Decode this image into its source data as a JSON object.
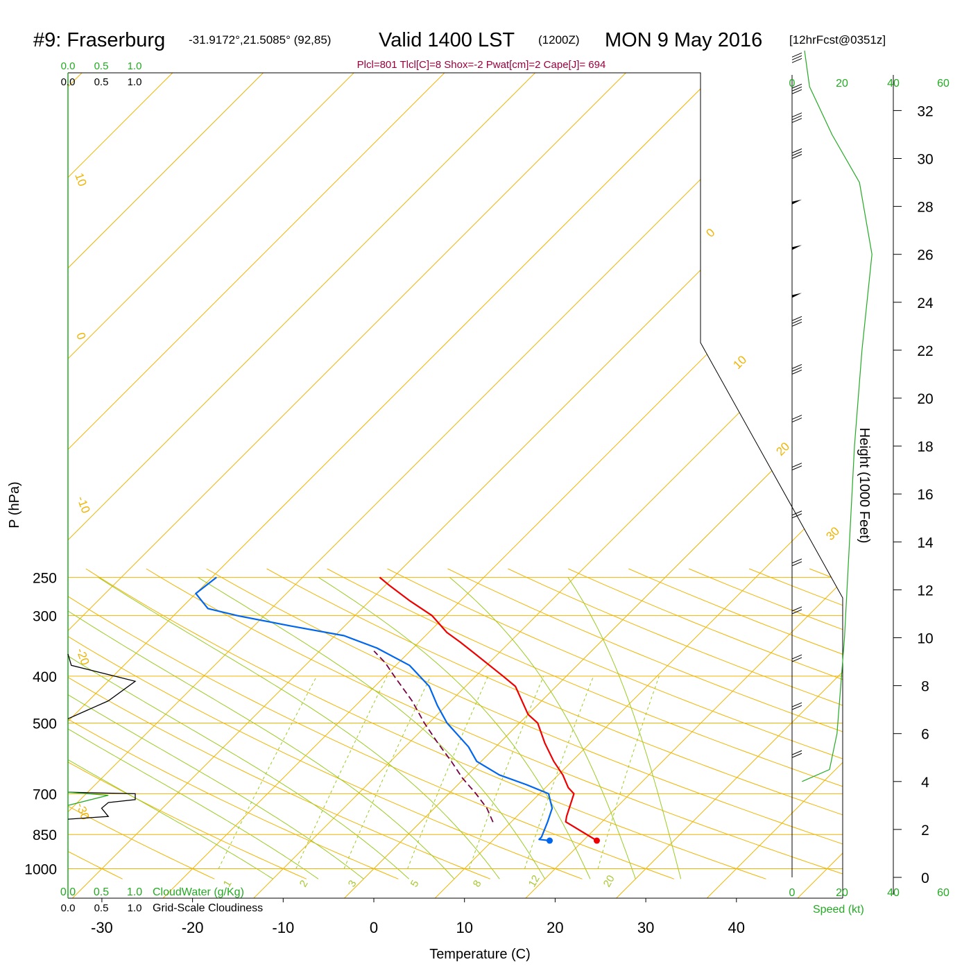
{
  "title": {
    "station": "#9: Fraserburg",
    "coords": "-31.9172°,21.5085° (92,85)",
    "valid": "Valid 1400 LST",
    "utc": "(1200Z)",
    "date": "MON 9 May 2016",
    "forecast": "[12hrFcst@0351z]"
  },
  "params_line": "Plcl=801 Tlcl[C]=8 Shox=-2 Pwat[cm]=2 Cape[J]= 694",
  "axes": {
    "xlabel": "Temperature (C)",
    "ylabel": "P (hPa)",
    "height_label": "Height (1000 Feet)",
    "speed_label": "Speed (kt)",
    "cloudwater_label": "CloudWater (g/Kg)",
    "cloudiness_label": "Grid-Scale Cloudiness"
  },
  "colors": {
    "temperature": "#ee0000",
    "dewpoint": "#0066ee",
    "parcel": "#770044",
    "isotherm": "#f0b400",
    "dry_adiabat": "#f0b400",
    "moist_adiabat": "#99cc22",
    "mixing_ratio": "#99cc22",
    "cloudwater": "#22aa22",
    "cloudiness": "#000000",
    "wind_speed": "#22aa22"
  },
  "chart_data": {
    "type": "line",
    "title": "#9: Fraserburg -31.9172°,21.5085° (92,85) Valid 1400 LST (1200Z) MON 9 May 2016 [12hrFcst@0351z]",
    "subtitle": "Plcl=801 Tlcl[C]=8 Shox=-2 Pwat[cm]=2 Cape[J]= 694",
    "xlabel": "Temperature (C)",
    "ylabel": "P (hPa)",
    "xlim": [
      -34,
      46
    ],
    "ylim": [
      1000,
      250
    ],
    "y_scale": "log",
    "skew": "skew-T log-P",
    "grid": true,
    "pressure_ticks": [
      "250",
      "300",
      "400",
      "500",
      "700",
      "850",
      "1000"
    ],
    "temperature_ticks": [
      "-30",
      "-20",
      "-10",
      "0",
      "10",
      "20",
      "30",
      "40"
    ],
    "isotherm_labels": [
      "10",
      "0",
      "-10",
      "-20",
      "-30",
      "0",
      "10",
      "20",
      "30"
    ],
    "mixing_ratio_labels": [
      "1",
      "2",
      "3",
      "5",
      "8",
      "12",
      "20"
    ],
    "height_ticks": [
      "0",
      "2",
      "4",
      "6",
      "8",
      "10",
      "12",
      "14",
      "16",
      "18",
      "20",
      "22",
      "24",
      "26",
      "28",
      "30",
      "32"
    ],
    "speed_ticks": [
      "0",
      "20",
      "40",
      "60"
    ],
    "cloud_ticks": [
      "0.0",
      "0.5",
      "1.0"
    ],
    "series": [
      {
        "name": "Temperature",
        "points": [
          {
            "p": 875,
            "t": 21.5
          },
          {
            "p": 800,
            "t": 16.0
          },
          {
            "p": 780,
            "t": 15.5
          },
          {
            "p": 700,
            "t": 13.8
          },
          {
            "p": 680,
            "t": 12.5
          },
          {
            "p": 640,
            "t": 10.5
          },
          {
            "p": 600,
            "t": 8.0
          },
          {
            "p": 550,
            "t": 5.0
          },
          {
            "p": 500,
            "t": 2.0
          },
          {
            "p": 480,
            "t": 0.0
          },
          {
            "p": 420,
            "t": -4.5
          },
          {
            "p": 400,
            "t": -7.0
          },
          {
            "p": 360,
            "t": -12.5
          },
          {
            "p": 340,
            "t": -15.5
          },
          {
            "p": 325,
            "t": -18.0
          },
          {
            "p": 300,
            "t": -21.5
          },
          {
            "p": 280,
            "t": -25.5
          },
          {
            "p": 260,
            "t": -29.5
          },
          {
            "p": 250,
            "t": -31.5
          }
        ]
      },
      {
        "name": "Dewpoint",
        "points": [
          {
            "p": 875,
            "t": 16.3
          },
          {
            "p": 870,
            "t": 15.0
          },
          {
            "p": 860,
            "t": 15.0
          },
          {
            "p": 800,
            "t": 14.0
          },
          {
            "p": 750,
            "t": 13.0
          },
          {
            "p": 700,
            "t": 11.0
          },
          {
            "p": 670,
            "t": 7.5
          },
          {
            "p": 640,
            "t": 3.5
          },
          {
            "p": 600,
            "t": -0.5
          },
          {
            "p": 560,
            "t": -3.0
          },
          {
            "p": 500,
            "t": -8.0
          },
          {
            "p": 460,
            "t": -11.0
          },
          {
            "p": 420,
            "t": -14.0
          },
          {
            "p": 380,
            "t": -18.5
          },
          {
            "p": 350,
            "t": -24.0
          },
          {
            "p": 330,
            "t": -29.0
          },
          {
            "p": 315,
            "t": -36.0
          },
          {
            "p": 300,
            "t": -43.0
          },
          {
            "p": 290,
            "t": -47.0
          },
          {
            "p": 270,
            "t": -50.0
          },
          {
            "p": 250,
            "t": -49.5
          }
        ]
      },
      {
        "name": "Parcel",
        "points": [
          {
            "p": 801,
            "t": 8.0
          },
          {
            "p": 750,
            "t": 5.8
          },
          {
            "p": 700,
            "t": 3.0
          },
          {
            "p": 650,
            "t": -0.2
          },
          {
            "p": 600,
            "t": -3.3
          },
          {
            "p": 550,
            "t": -6.8
          },
          {
            "p": 500,
            "t": -10.5
          },
          {
            "p": 450,
            "t": -14.3
          },
          {
            "p": 400,
            "t": -19.0
          },
          {
            "p": 375,
            "t": -21.5
          },
          {
            "p": 355,
            "t": -24.0
          }
        ]
      }
    ],
    "surface_markers": [
      {
        "name": "Temperature",
        "p": 875,
        "t": 21.5
      },
      {
        "name": "Dewpoint",
        "p": 875,
        "t": 16.3
      }
    ],
    "cloudiness": [
      {
        "p": 695,
        "v": 0.0
      },
      {
        "p": 700,
        "v": 1.0
      },
      {
        "p": 720,
        "v": 1.0
      },
      {
        "p": 730,
        "v": 0.6
      },
      {
        "p": 750,
        "v": 0.5
      },
      {
        "p": 780,
        "v": 0.6
      },
      {
        "p": 790,
        "v": 0.0
      },
      {
        "p": 360,
        "v": 0.0
      },
      {
        "p": 380,
        "v": 0.05
      },
      {
        "p": 410,
        "v": 1.0
      },
      {
        "p": 450,
        "v": 0.6
      },
      {
        "p": 490,
        "v": 0.0
      }
    ],
    "cloudwater": [
      {
        "p": 695,
        "v": 0.0
      },
      {
        "p": 705,
        "v": 0.6
      },
      {
        "p": 740,
        "v": 0.0
      }
    ],
    "wind_speed_profile": [
      {
        "h": 4.0,
        "s": 4
      },
      {
        "h": 4.5,
        "s": 15
      },
      {
        "h": 6.0,
        "s": 18
      },
      {
        "h": 10.0,
        "s": 21
      },
      {
        "h": 14.0,
        "s": 23
      },
      {
        "h": 18.0,
        "s": 25
      },
      {
        "h": 22.0,
        "s": 28
      },
      {
        "h": 26.0,
        "s": 32
      },
      {
        "h": 29.0,
        "s": 27
      },
      {
        "h": 31.0,
        "s": 16
      },
      {
        "h": 33.0,
        "s": 7
      },
      {
        "h": 34.5,
        "s": 5
      }
    ],
    "wind_barbs": [
      {
        "h": 5.0,
        "s": 20
      },
      {
        "h": 7.0,
        "s": 20
      },
      {
        "h": 9.0,
        "s": 20
      },
      {
        "h": 11.0,
        "s": 20
      },
      {
        "h": 13.0,
        "s": 20
      },
      {
        "h": 15.0,
        "s": 20
      },
      {
        "h": 17.0,
        "s": 20
      },
      {
        "h": 19.0,
        "s": 20
      },
      {
        "h": 21.0,
        "s": 25
      },
      {
        "h": 23.0,
        "s": 25
      },
      {
        "h": 24.3,
        "s": 50
      },
      {
        "h": 26.3,
        "s": 50
      },
      {
        "h": 28.2,
        "s": 50
      },
      {
        "h": 30.0,
        "s": 30
      },
      {
        "h": 31.5,
        "s": 30
      },
      {
        "h": 32.7,
        "s": 30
      },
      {
        "h": 34.0,
        "s": 30
      }
    ]
  }
}
